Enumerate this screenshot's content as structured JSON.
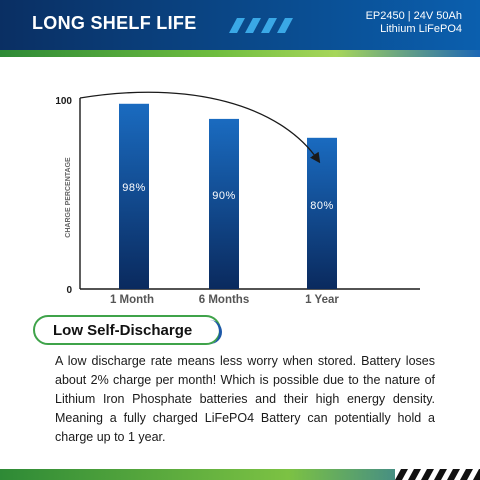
{
  "header": {
    "title": "LONG SHELF LIFE",
    "model_line1": "EP2450 | 24V 50Ah",
    "model_line2": "Lithium LiFePO4"
  },
  "section": {
    "title": "Low Self-Discharge",
    "description": "A low discharge rate means less worry when stored. Battery loses about 2% charge per month! Which is possible due to the nature of Lithium Iron Phosphate batteries and their high energy density. Meaning a fully charged LiFePO4 Battery can potentially hold a charge up to 1 year."
  },
  "colors": {
    "header_dark": "#0a2f63",
    "bar_top": "#1a6bc0",
    "bar_bottom": "#0a2a5e",
    "accent_green": "#6fbd3f"
  },
  "chart_data": {
    "type": "bar",
    "categories": [
      "1 Month",
      "6 Months",
      "1 Year"
    ],
    "values": [
      98,
      90,
      80
    ],
    "value_labels": [
      "98%",
      "90%",
      "80%"
    ],
    "ylabel": "CHARGE PERCENTAGE",
    "ylim": [
      0,
      100
    ],
    "y_ticks": [
      "100",
      "0"
    ],
    "grid": false,
    "annotation": "curved arrow showing decline from 100 toward the 1 Year bar"
  }
}
